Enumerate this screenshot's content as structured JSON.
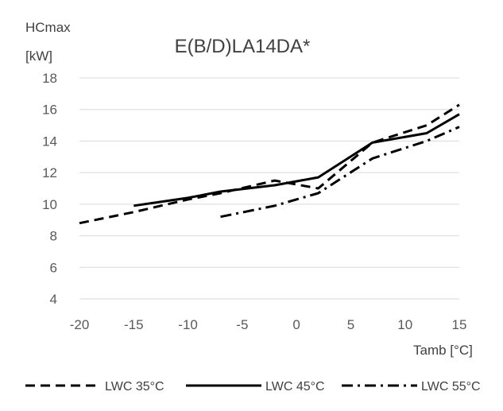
{
  "chart_data": {
    "type": "line",
    "title": "E(B/D)LA14DA*",
    "ylabel_lines": [
      "HCmax",
      "[kW]"
    ],
    "xlabel": "Tamb [°C]",
    "xlim": [
      -20,
      15
    ],
    "ylim": [
      4,
      18
    ],
    "x_ticks": [
      -20,
      -15,
      -10,
      -5,
      0,
      5,
      10,
      15
    ],
    "y_ticks": [
      4,
      6,
      8,
      10,
      12,
      14,
      16,
      18
    ],
    "x_tick_labels": [
      "-20",
      "-15",
      "-10",
      "-5",
      "0",
      "5",
      "10",
      "15"
    ],
    "y_tick_labels": [
      "4",
      "6",
      "8",
      "10",
      "12",
      "14",
      "16",
      "18"
    ],
    "grid": "horizontal",
    "legend_position": "bottom",
    "series": [
      {
        "name": "LWC 35°C",
        "dash": "dashed",
        "points": [
          [
            -20,
            8.8
          ],
          [
            -15,
            9.5
          ],
          [
            -10,
            10.3
          ],
          [
            -7,
            10.7
          ],
          [
            -2,
            11.5
          ],
          [
            2,
            11.0
          ],
          [
            7,
            13.9
          ],
          [
            12,
            15.0
          ],
          [
            15,
            16.3
          ]
        ]
      },
      {
        "name": "LWC 45°C",
        "dash": "solid",
        "points": [
          [
            -15,
            9.9
          ],
          [
            -10,
            10.4
          ],
          [
            -7,
            10.8
          ],
          [
            -2,
            11.2
          ],
          [
            2,
            11.7
          ],
          [
            7,
            13.9
          ],
          [
            12,
            14.5
          ],
          [
            15,
            15.7
          ]
        ]
      },
      {
        "name": "LWC 55°C",
        "dash": "dash-dot",
        "points": [
          [
            -7,
            9.2
          ],
          [
            -2,
            9.9
          ],
          [
            2,
            10.7
          ],
          [
            7,
            12.9
          ],
          [
            12,
            14.0
          ],
          [
            15,
            14.9
          ]
        ]
      }
    ]
  }
}
